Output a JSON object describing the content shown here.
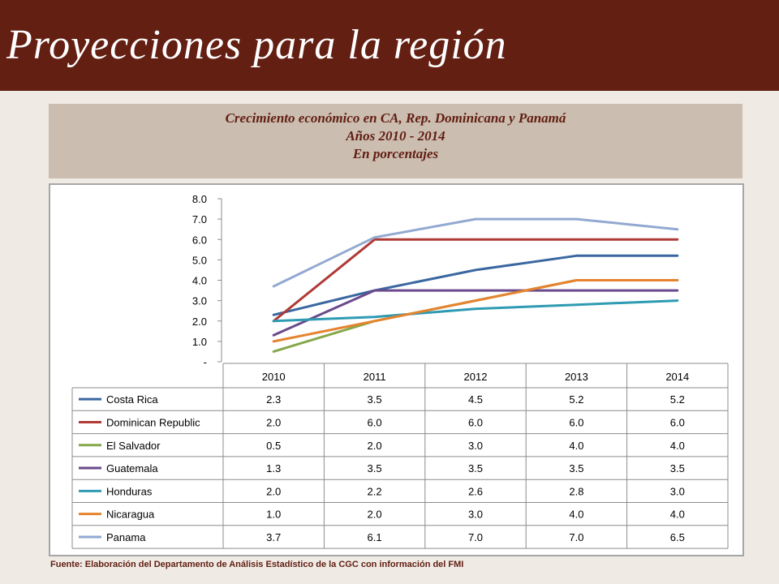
{
  "header": {
    "title": "Proyecciones para la región"
  },
  "caption": {
    "line1": "Crecimiento económico en CA, Rep. Dominicana y Panamá",
    "line2": "Años 2010 - 2014",
    "line3": "En porcentajes"
  },
  "source": "Fuente:  Elaboración del Departamento de Análisis Estadístico de la CGC con información del FMI",
  "chart_data": {
    "type": "line",
    "title": "",
    "xlabel": "",
    "ylabel": "",
    "categories": [
      "2010",
      "2011",
      "2012",
      "2013",
      "2014"
    ],
    "ylim": [
      0,
      8
    ],
    "yticks": [
      "-",
      "1.0",
      "2.0",
      "3.0",
      "4.0",
      "5.0",
      "6.0",
      "7.0",
      "8.0"
    ],
    "grid": false,
    "legend": "data-table-below",
    "series": [
      {
        "name": "Costa Rica",
        "color": "#3a67a0",
        "values": [
          2.3,
          3.5,
          4.5,
          5.2,
          5.2
        ],
        "labels": [
          "2.3",
          "3.5",
          "4.5",
          "5.2",
          "5.2"
        ]
      },
      {
        "name": "Dominican Republic",
        "color": "#b03a36",
        "values": [
          2.0,
          6.0,
          6.0,
          6.0,
          6.0
        ],
        "labels": [
          "2.0",
          "6.0",
          "6.0",
          "6.0",
          "6.0"
        ]
      },
      {
        "name": "El Salvador",
        "color": "#85a84a",
        "values": [
          0.5,
          2.0,
          3.0,
          4.0,
          4.0
        ],
        "labels": [
          "0.5",
          "2.0",
          "3.0",
          "4.0",
          "4.0"
        ]
      },
      {
        "name": "Guatemala",
        "color": "#6a4a8c",
        "values": [
          1.3,
          3.5,
          3.5,
          3.5,
          3.5
        ],
        "labels": [
          "1.3",
          "3.5",
          "3.5",
          "3.5",
          "3.5"
        ]
      },
      {
        "name": "Honduras",
        "color": "#2e9bb2",
        "values": [
          2.0,
          2.2,
          2.6,
          2.8,
          3.0
        ],
        "labels": [
          "2.0",
          "2.2",
          "2.6",
          "2.8",
          "3.0"
        ]
      },
      {
        "name": "Nicaragua",
        "color": "#e5832e",
        "values": [
          1.0,
          2.0,
          3.0,
          4.0,
          4.0
        ],
        "labels": [
          "1.0",
          "2.0",
          "3.0",
          "4.0",
          "4.0"
        ]
      },
      {
        "name": "Panama",
        "color": "#92a9d1",
        "values": [
          3.7,
          6.1,
          7.0,
          7.0,
          6.5
        ],
        "labels": [
          "3.7",
          "6.1",
          "7.0",
          "7.0",
          "6.5"
        ]
      }
    ]
  }
}
